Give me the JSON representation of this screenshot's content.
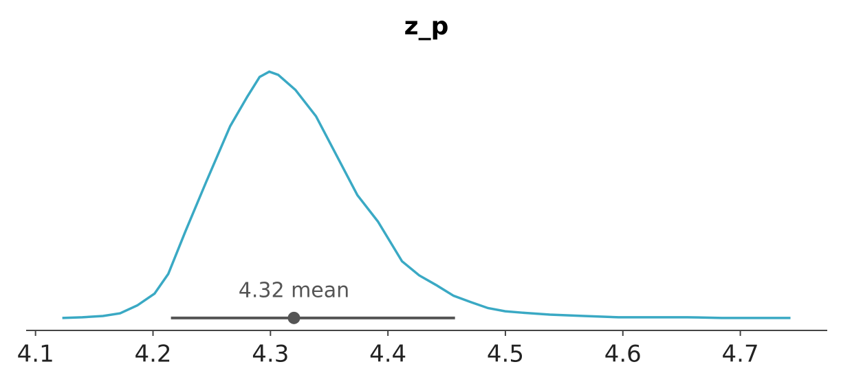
{
  "chart_data": {
    "type": "density",
    "title": "z_p",
    "x": [
      4.1228,
      4.1398,
      4.1574,
      4.172,
      4.1866,
      4.2013,
      4.213,
      4.2276,
      4.2452,
      4.2657,
      4.2803,
      4.2908,
      4.299,
      4.3066,
      4.3213,
      4.3388,
      4.3564,
      4.374,
      4.3915,
      4.412,
      4.4266,
      4.4413,
      4.4559,
      4.4705,
      4.4852,
      4.4998,
      4.5144,
      4.5379,
      4.5671,
      4.5964,
      4.6549,
      4.6842,
      4.7427
    ],
    "y": [
      0,
      0.019,
      0.056,
      0.131,
      0.355,
      0.69,
      1.25,
      2.46,
      3.86,
      5.45,
      6.29,
      6.85,
      7.0,
      6.91,
      6.48,
      5.73,
      4.61,
      3.49,
      2.74,
      1.61,
      1.21,
      0.93,
      0.63,
      0.45,
      0.28,
      0.19,
      0.149,
      0.093,
      0.056,
      0.019,
      0.019,
      0,
      0
    ],
    "color": "#3aa9c4",
    "hdi": [
      4.2153,
      4.4571
    ],
    "point_estimate": {
      "value": 4.32,
      "label": "4.32 mean"
    },
    "marker_color": "#555555",
    "xlim": [
      4.092,
      4.774
    ],
    "ylim": [
      -0.355,
      7.67
    ],
    "xticks": [
      4.1,
      4.2,
      4.3,
      4.4,
      4.5,
      4.6,
      4.7
    ]
  }
}
